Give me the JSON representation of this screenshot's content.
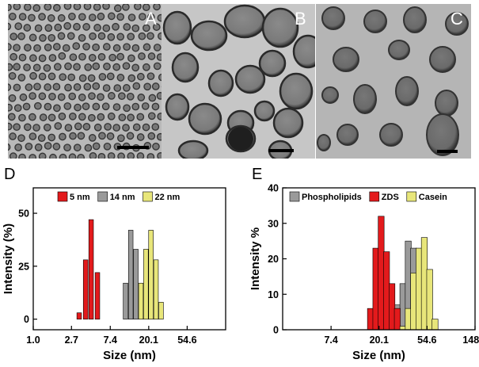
{
  "panels": {
    "A": "A",
    "B": "B",
    "C": "C",
    "D": "D",
    "E": "E"
  },
  "chart_data": [
    {
      "type": "bar",
      "panel": "D",
      "x_scale": "log",
      "xlabel": "Size (nm)",
      "ylabel": "Intensity (%)",
      "xticks": [
        "1.0",
        "2.7",
        "7.4",
        "20.1",
        "54.6"
      ],
      "xtick_values": [
        1.0,
        2.7,
        7.4,
        20.1,
        54.6
      ],
      "xlim": [
        1.0,
        148.4
      ],
      "yticks": [
        0,
        25,
        50
      ],
      "ylim": [
        -5,
        62
      ],
      "legend_position": "top",
      "series": [
        {
          "name": "5 nm",
          "color": "#e31a1c",
          "x": [
            3.3,
            3.9,
            4.5,
            5.3
          ],
          "values": [
            3,
            28,
            47,
            22
          ]
        },
        {
          "name": "14 nm",
          "color": "#9a9a9a",
          "x": [
            11.0,
            12.6,
            14.4
          ],
          "values": [
            17,
            42,
            33
          ]
        },
        {
          "name": "22 nm",
          "color": "#e8e67a",
          "x": [
            16.4,
            18.7,
            21.3,
            24.3,
            27.7
          ],
          "values": [
            17,
            33,
            42,
            28,
            8
          ]
        }
      ]
    },
    {
      "type": "bar",
      "panel": "E",
      "x_scale": "log",
      "xlabel": "Size (nm)",
      "ylabel": "Intensity %",
      "xticks": [
        "7.4",
        "20.1",
        "54.6",
        "148.4"
      ],
      "xtick_values": [
        7.4,
        20.1,
        54.6,
        148.4
      ],
      "xlim": [
        2.7,
        148.4
      ],
      "yticks": [
        0,
        10,
        20,
        30,
        40
      ],
      "ylim": [
        0,
        40
      ],
      "legend_position": "top",
      "series": [
        {
          "name": "Phospholipids",
          "color": "#9a9a9a",
          "x": [
            29.5,
            33.0,
            36.9,
            41.3
          ],
          "values": [
            7,
            13,
            25,
            23
          ]
        },
        {
          "name": "ZDS",
          "color": "#e31a1c",
          "x": [
            16.8,
            18.8,
            21.0,
            23.5,
            26.3,
            29.4
          ],
          "values": [
            6,
            23,
            32,
            22,
            13,
            6
          ]
        },
        {
          "name": "Casein",
          "color": "#e8e67a",
          "x": [
            33.0,
            36.9,
            41.3,
            46.2,
            51.6,
            57.7,
            64.5
          ],
          "values": [
            1,
            6,
            16,
            23,
            26,
            17,
            3
          ]
        }
      ]
    }
  ]
}
